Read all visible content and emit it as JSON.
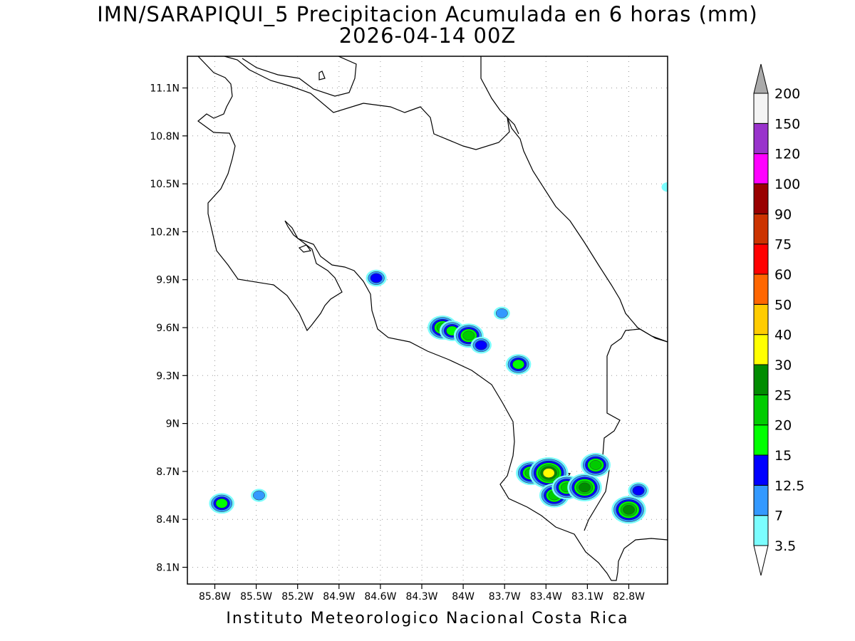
{
  "title": {
    "line1": "IMN/SARAPIQUI_5 Precipitacion Acumulada en 6 horas (mm)",
    "line2": "2026-04-14 00Z"
  },
  "footer": "Instituto Meteorologico Nacional Costa Rica",
  "map": {
    "lat_labels": [
      "11.1N",
      "10.8N",
      "10.5N",
      "10.2N",
      "9.9N",
      "9.6N",
      "9.3N",
      "9N",
      "8.7N",
      "8.4N",
      "8.1N"
    ],
    "lon_labels": [
      "85.8W",
      "85.5W",
      "85.2W",
      "84.9W",
      "84.6W",
      "84.3W",
      "84W",
      "83.7W",
      "83.4W",
      "83.1W",
      "82.8W"
    ],
    "grid": "dotted",
    "precip_cells": [
      {
        "lon": -84.63,
        "lat": 9.91,
        "mm": 12.5
      },
      {
        "lon": -84.15,
        "lat": 9.6,
        "mm": 20
      },
      {
        "lon": -84.08,
        "lat": 9.58,
        "mm": 15
      },
      {
        "lon": -83.96,
        "lat": 9.55,
        "mm": 20
      },
      {
        "lon": -83.87,
        "lat": 9.49,
        "mm": 12.5
      },
      {
        "lon": -83.72,
        "lat": 9.69,
        "mm": 7
      },
      {
        "lon": -83.6,
        "lat": 9.37,
        "mm": 15
      },
      {
        "lon": -83.51,
        "lat": 8.69,
        "mm": 20
      },
      {
        "lon": -83.38,
        "lat": 8.69,
        "mm": 30
      },
      {
        "lon": -83.34,
        "lat": 8.55,
        "mm": 20
      },
      {
        "lon": -83.25,
        "lat": 8.6,
        "mm": 20
      },
      {
        "lon": -83.12,
        "lat": 8.6,
        "mm": 25
      },
      {
        "lon": -83.04,
        "lat": 8.74,
        "mm": 20
      },
      {
        "lon": -82.8,
        "lat": 8.46,
        "mm": 25
      },
      {
        "lon": -82.73,
        "lat": 8.58,
        "mm": 12.5
      },
      {
        "lon": -85.75,
        "lat": 8.5,
        "mm": 15
      },
      {
        "lon": -85.48,
        "lat": 8.55,
        "mm": 7
      },
      {
        "lon": -82.52,
        "lat": 10.48,
        "mm": 3.5
      }
    ]
  },
  "colorbar": {
    "levels": [
      "3.5",
      "7",
      "12.5",
      "15",
      "20",
      "25",
      "30",
      "40",
      "50",
      "60",
      "75",
      "90",
      "100",
      "120",
      "150",
      "200"
    ],
    "colors": [
      "#7bfdfe",
      "#3399ff",
      "#0000ff",
      "#00ff00",
      "#00cc00",
      "#008c00",
      "#ffff00",
      "#ffcc00",
      "#ff6600",
      "#ff0000",
      "#cc3300",
      "#990000",
      "#ff00ff",
      "#9933cc",
      "#f4f4f4"
    ],
    "top_arrow_color": "#aaaaaa",
    "bottom_arrow_color": "#ffffff"
  }
}
